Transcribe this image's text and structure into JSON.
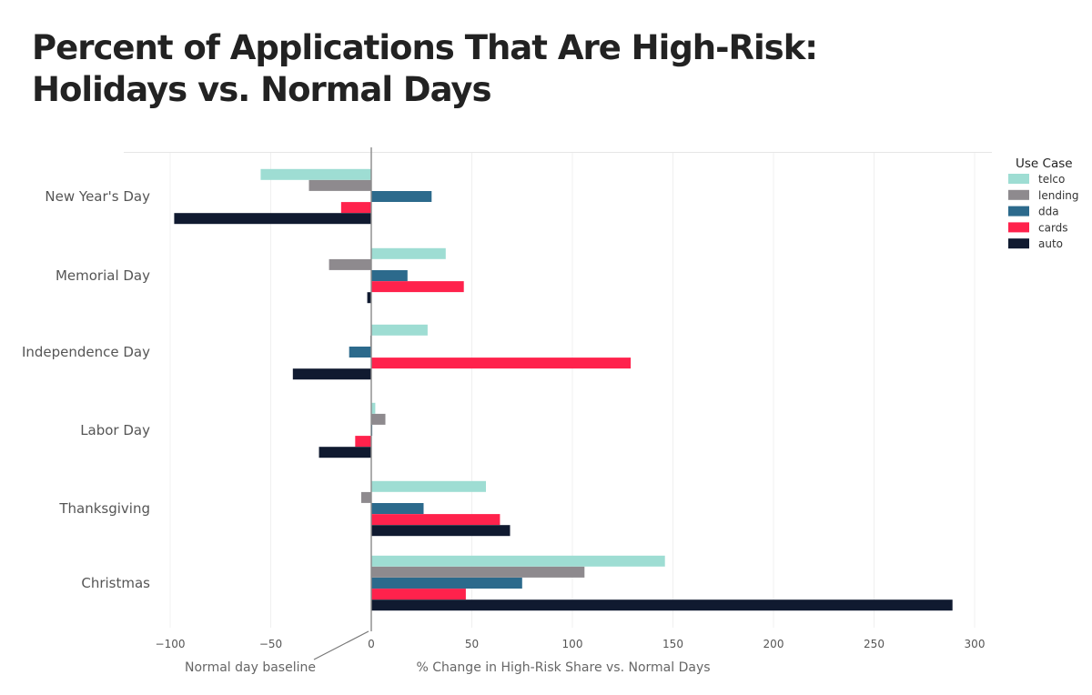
{
  "chart_data": {
    "type": "bar",
    "orientation": "horizontal",
    "title_lines": [
      "Percent of Applications That Are High-Risk:",
      "Holidays vs. Normal Days"
    ],
    "xlabel": "% Change in High-Risk Share vs. Normal Days",
    "ylabel": "",
    "xlim": [
      -103,
      304
    ],
    "xticks": [
      -100,
      -50,
      0,
      50,
      100,
      150,
      200,
      250,
      300
    ],
    "xtick_labels": [
      "−100",
      "−50",
      "0",
      "50",
      "100",
      "150",
      "200",
      "250",
      "300"
    ],
    "grid": "vertical",
    "categories": [
      "New Year's Day",
      "Memorial Day",
      "Independence Day",
      "Labor Day",
      "Thanksgiving",
      "Christmas"
    ],
    "series": [
      {
        "name": "telco",
        "color": "#9EDDD3",
        "values": [
          -55,
          37,
          28,
          2,
          57,
          146
        ]
      },
      {
        "name": "lending",
        "color": "#8E8A8E",
        "values": [
          -31,
          -21,
          -0.5,
          7,
          -5,
          106
        ]
      },
      {
        "name": "dda",
        "color": "#2C6A8C",
        "values": [
          30,
          18,
          -11,
          0.5,
          26,
          75
        ]
      },
      {
        "name": "cards",
        "color": "#FF224C",
        "values": [
          -15,
          46,
          129,
          -8,
          64,
          47
        ]
      },
      {
        "name": "auto",
        "color": "#101A30",
        "values": [
          -98,
          -2,
          -39,
          -26,
          69,
          289
        ]
      }
    ],
    "legend": {
      "title": "Use Case",
      "position": "right"
    },
    "annotation": {
      "text": "Normal day baseline",
      "points_to_x": 0
    }
  }
}
